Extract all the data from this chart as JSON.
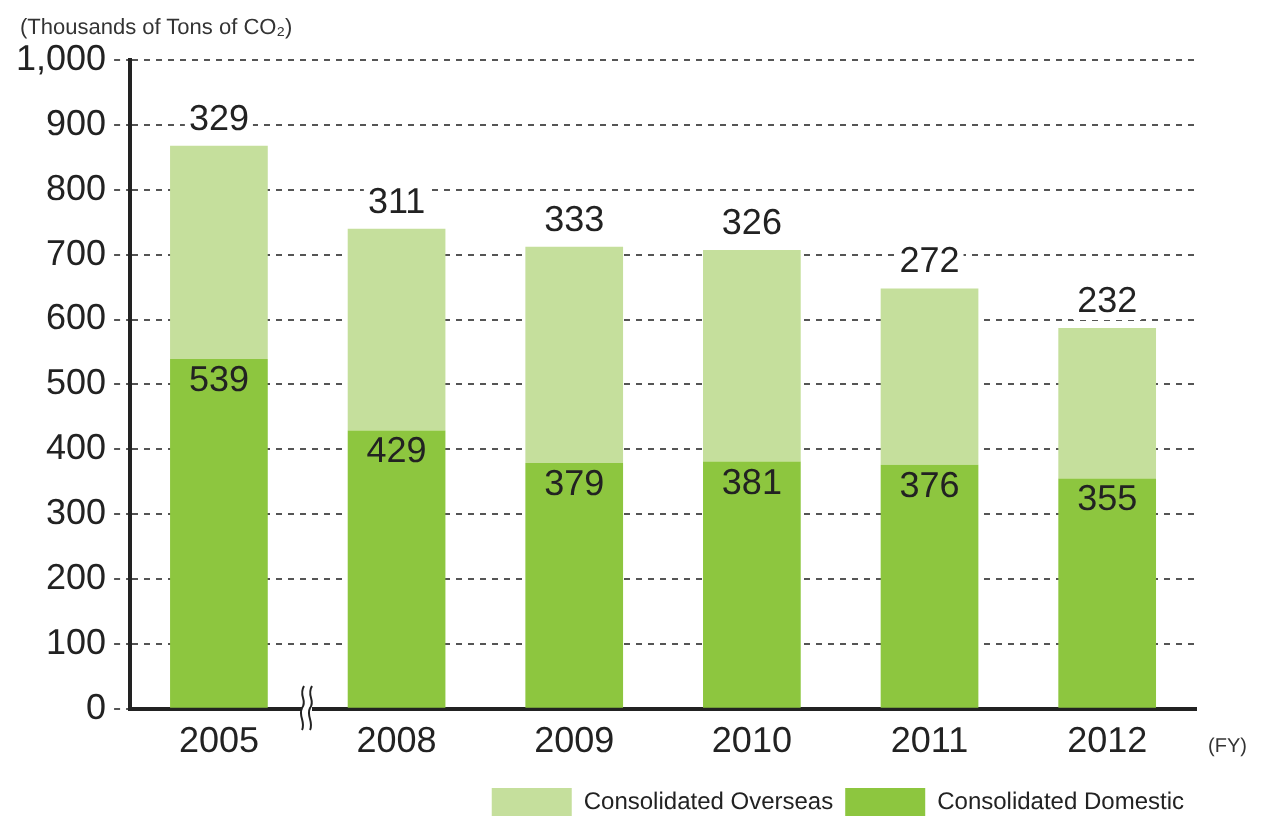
{
  "chart_data": {
    "type": "bar",
    "stacked": true,
    "ylabel": "(Thousands of Tons of CO₂)",
    "xlabel": "(FY)",
    "categories": [
      "2005",
      "2008",
      "2009",
      "2010",
      "2011",
      "2012"
    ],
    "series": [
      {
        "name": "Consolidated Domestic",
        "color": "#8dc63f",
        "values": [
          539,
          429,
          379,
          381,
          376,
          355
        ]
      },
      {
        "name": "Consolidated Overseas",
        "color": "#c5df9c",
        "values": [
          329,
          311,
          333,
          326,
          272,
          232
        ]
      }
    ],
    "ylim": [
      0,
      1000
    ],
    "yticks": [
      0,
      100,
      200,
      300,
      400,
      500,
      600,
      700,
      800,
      900,
      {
        "value": 1000,
        "label": "1,000"
      }
    ],
    "grid": "y",
    "legend": "bottom right",
    "data_labels": true
  }
}
